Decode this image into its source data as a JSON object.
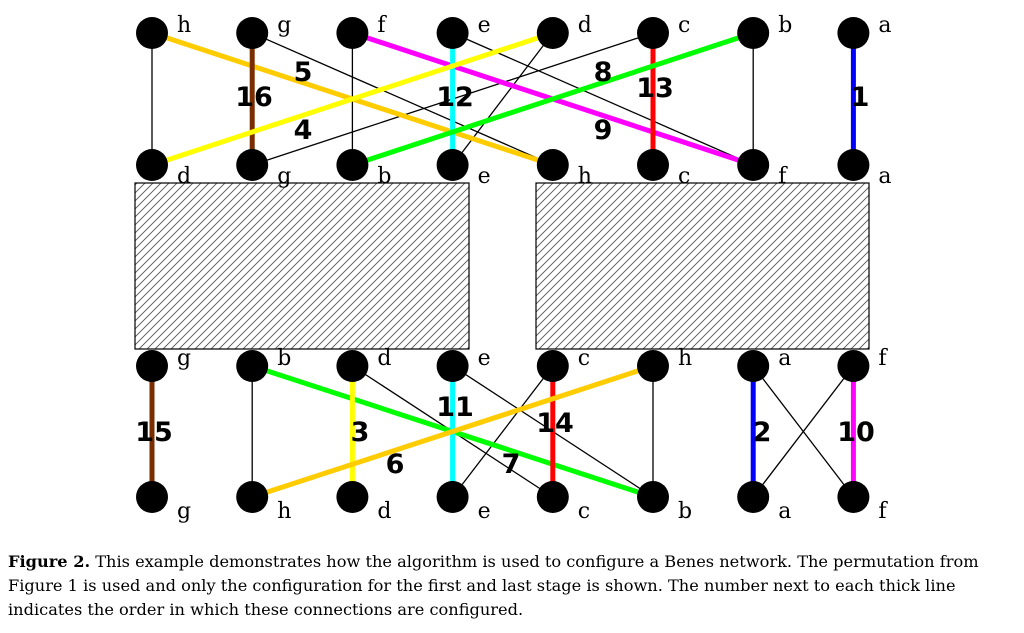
{
  "nodes": {
    "top_inputs": [
      "h",
      "g",
      "f",
      "e",
      "d",
      "c",
      "b",
      "a"
    ],
    "top_outputs": [
      "d",
      "g",
      "b",
      "e",
      "h",
      "c",
      "f",
      "a"
    ],
    "bottom_inputs": [
      "g",
      "b",
      "d",
      "e",
      "c",
      "h",
      "a",
      "f"
    ],
    "bottom_outputs": [
      "g",
      "h",
      "d",
      "e",
      "c",
      "b",
      "a",
      "f"
    ]
  },
  "top_thin_edges": [
    [
      0,
      0
    ],
    [
      1,
      4
    ],
    [
      2,
      2
    ],
    [
      3,
      6
    ],
    [
      4,
      3
    ],
    [
      5,
      1
    ],
    [
      6,
      6
    ],
    [
      7,
      7
    ]
  ],
  "top_thick_edges": [
    {
      "from": 0,
      "to": 4,
      "color": "#ffcc00",
      "order": "5"
    },
    {
      "from": 1,
      "to": 1,
      "color": "#7a2e00",
      "order": "16"
    },
    {
      "from": 2,
      "to": 6,
      "color": "#ff00ff",
      "order": "9"
    },
    {
      "from": 3,
      "to": 3,
      "color": "#00ffff",
      "order": "12"
    },
    {
      "from": 4,
      "to": 0,
      "color": "#ffff00",
      "order": "4"
    },
    {
      "from": 5,
      "to": 5,
      "color": "#ff0000",
      "order": "13"
    },
    {
      "from": 6,
      "to": 2,
      "color": "#00ff00",
      "order": "8"
    },
    {
      "from": 7,
      "to": 7,
      "color": "#0000ff",
      "order": "1"
    }
  ],
  "bottom_thin_edges": [
    [
      0,
      0
    ],
    [
      1,
      1
    ],
    [
      2,
      4
    ],
    [
      3,
      5
    ],
    [
      4,
      3
    ],
    [
      5,
      5
    ],
    [
      6,
      7
    ],
    [
      7,
      6
    ]
  ],
  "bottom_thick_edges": [
    {
      "from": 0,
      "to": 0,
      "color": "#7a2e00",
      "order": "15"
    },
    {
      "from": 1,
      "to": 5,
      "color": "#00ff00",
      "order": "7"
    },
    {
      "from": 2,
      "to": 2,
      "color": "#ffff00",
      "order": "3"
    },
    {
      "from": 3,
      "to": 3,
      "color": "#00ffff",
      "order": "11"
    },
    {
      "from": 4,
      "to": 4,
      "color": "#ff0000",
      "order": "14"
    },
    {
      "from": 5,
      "to": 1,
      "color": "#ffcc00",
      "order": "6"
    },
    {
      "from": 6,
      "to": 6,
      "color": "#0000ff",
      "order": "2"
    },
    {
      "from": 7,
      "to": 7,
      "color": "#ff00ff",
      "order": "10"
    }
  ],
  "caption": {
    "label": "Figure 2.",
    "text": "This example demonstrates how the algorithm is used to configure a Benes network. The permutation from Figure 1 is used and only the configuration for the first and last stage is shown. The number next to each thick line indicates the order in which these connections are configured."
  }
}
